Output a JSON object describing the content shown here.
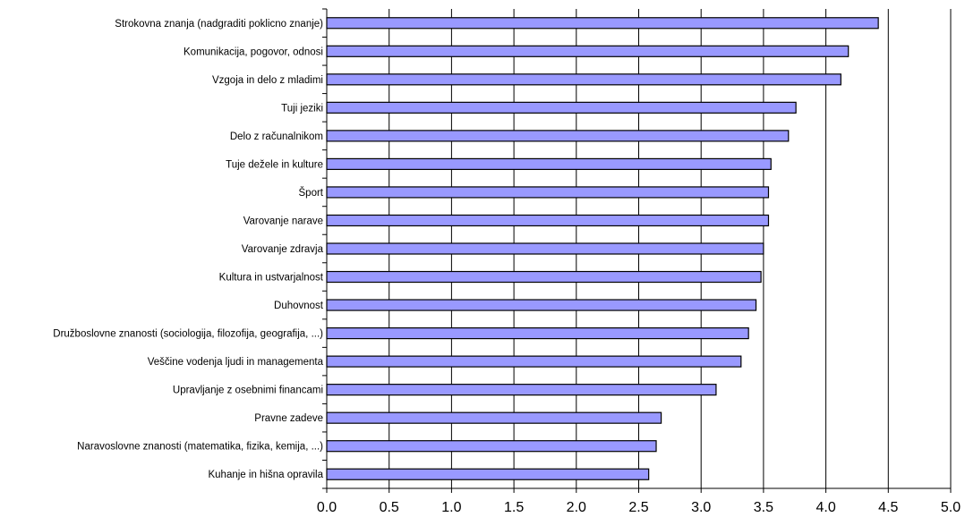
{
  "chart_data": {
    "type": "bar",
    "orientation": "horizontal",
    "categories": [
      "Strokovna znanja (nadgraditi poklicno znanje)",
      "Komunikacija, pogovor, odnosi",
      "Vzgoja in delo z mladimi",
      "Tuji jeziki",
      "Delo z računalnikom",
      "Tuje dežele in kulture",
      "Šport",
      "Varovanje narave",
      "Varovanje zdravja",
      "Kultura in ustvarjalnost",
      "Duhovnost",
      "Družboslovne znanosti (sociologija, filozofija, geografija, ...)",
      "Veščine vodenja ljudi in managementa",
      "Upravljanje z osebnimi financami",
      "Pravne zadeve",
      "Naravoslovne znanosti (matematika, fizika, kemija, ...)",
      "Kuhanje in hišna opravila"
    ],
    "values": [
      4.42,
      4.18,
      4.12,
      3.76,
      3.7,
      3.56,
      3.54,
      3.54,
      3.5,
      3.48,
      3.44,
      3.38,
      3.32,
      3.12,
      2.68,
      2.64,
      2.58
    ],
    "xlim": [
      0,
      5.0
    ],
    "xticks": [
      "0.0",
      "0.5",
      "1.0",
      "1.5",
      "2.0",
      "2.5",
      "3.0",
      "3.5",
      "4.0",
      "4.5",
      "5.0"
    ],
    "title": "",
    "xlabel": "",
    "ylabel": "",
    "grid": "vertical",
    "legend": "none",
    "colors": {
      "bar_fill": "#9999ff",
      "bar_stroke": "#000000",
      "grid": "#000000"
    }
  }
}
